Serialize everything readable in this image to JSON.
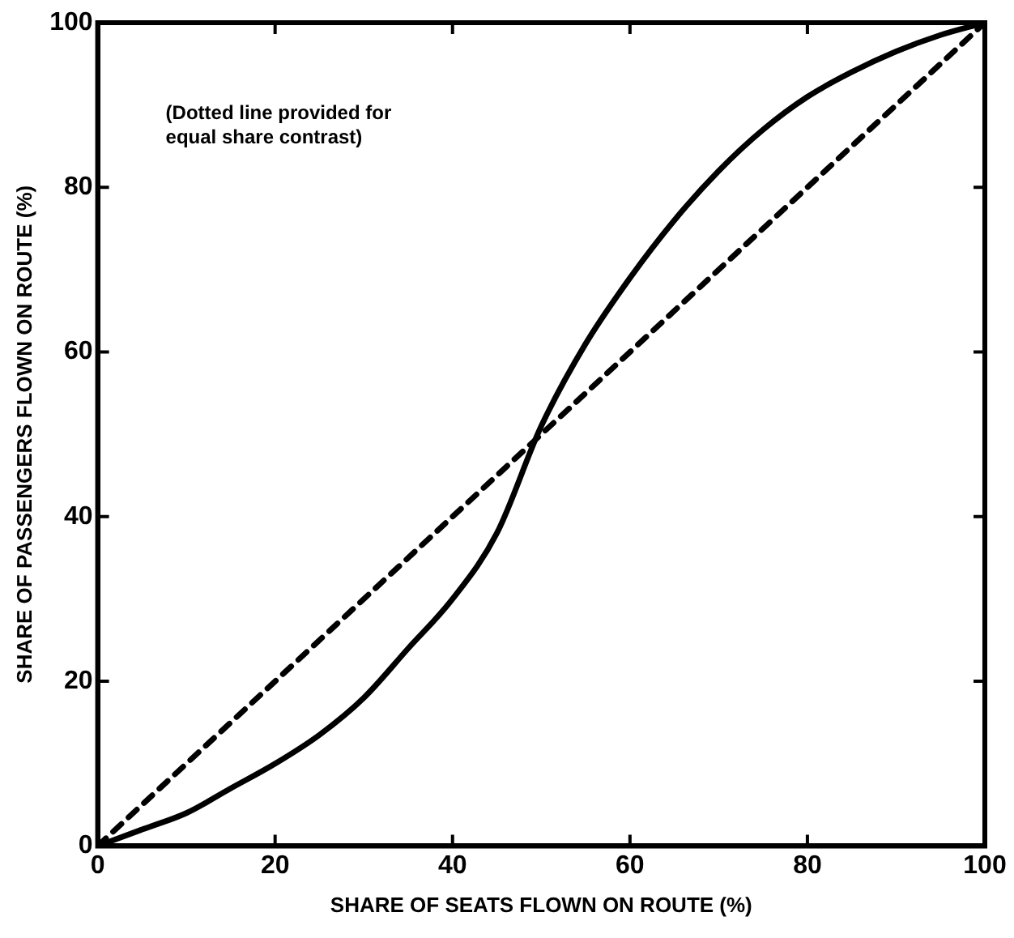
{
  "chart_data": {
    "type": "line",
    "xlabel": "SHARE OF SEATS FLOWN ON ROUTE (%)",
    "ylabel": "SHARE OF PASSENGERS FLOWN ON ROUTE (%)",
    "annotations": [
      "(Dotted line provided for\nequal share contrast)"
    ],
    "xlim": [
      0,
      100
    ],
    "ylim": [
      0,
      100
    ],
    "xticks": [
      0,
      20,
      40,
      60,
      80,
      100
    ],
    "yticks": [
      0,
      20,
      40,
      60,
      80,
      100
    ],
    "grid": false,
    "legend": false,
    "marker": "none",
    "series": [
      {
        "color": "#000000",
        "line_style": "solid",
        "x": [
          0,
          5,
          10,
          15,
          20,
          25,
          30,
          35,
          40,
          45,
          50,
          55,
          60,
          65,
          70,
          75,
          80,
          85,
          90,
          95,
          100
        ],
        "values": [
          0,
          2,
          4,
          7,
          10,
          13.5,
          18,
          24,
          30,
          38,
          51,
          61,
          69,
          76,
          82,
          87,
          91,
          94,
          96.5,
          98.5,
          100
        ]
      },
      {
        "color": "#000000",
        "line_style": "dashed",
        "x": [
          0,
          100
        ],
        "values": [
          0,
          100
        ]
      }
    ]
  }
}
